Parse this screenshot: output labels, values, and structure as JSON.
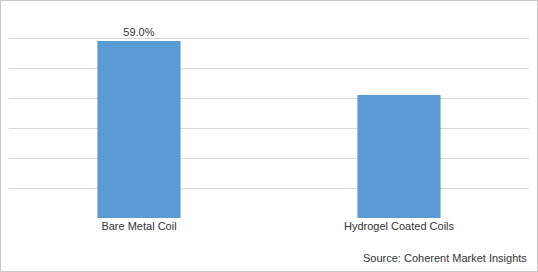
{
  "chart_data": {
    "type": "bar",
    "categories": [
      "Bare Metal Coil",
      "Hydrogel Coated Coils"
    ],
    "values": [
      59.0,
      41.0
    ],
    "value_labels": [
      "59.0%",
      null
    ],
    "data_labels": true,
    "color": "#5b9bd5",
    "ylim": [
      0,
      70
    ],
    "yticks": [
      0,
      10,
      20,
      30,
      40,
      50,
      60,
      70
    ],
    "grid": true,
    "tick_labels": "x",
    "annotations": [
      "Source: Coherent Market Insights"
    ]
  }
}
